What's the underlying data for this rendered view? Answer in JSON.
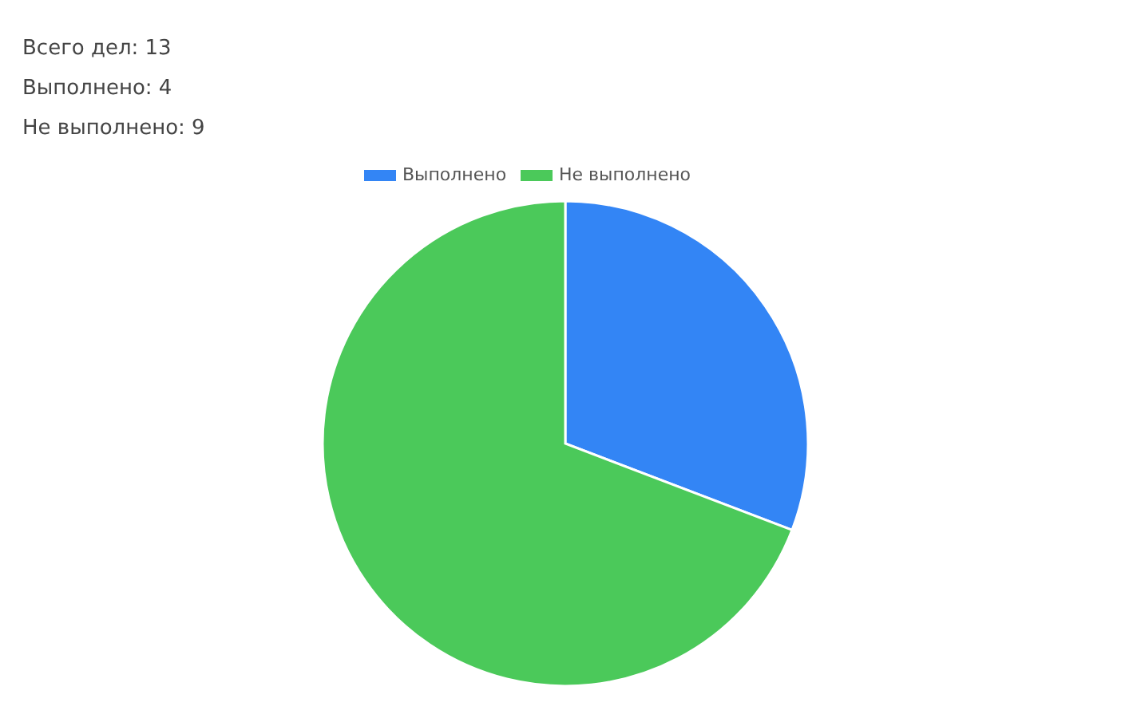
{
  "chart_data": {
    "type": "pie",
    "annotations": [
      "Всего дел: 13",
      "Выполнено: 4",
      "Не выполнено: 9"
    ],
    "categories": [
      "Выполнено",
      "Не выполнено"
    ],
    "values": [
      30.8,
      69.2
    ],
    "colors": [
      "#3385f5",
      "#4bc95a"
    ],
    "legend": "top"
  }
}
